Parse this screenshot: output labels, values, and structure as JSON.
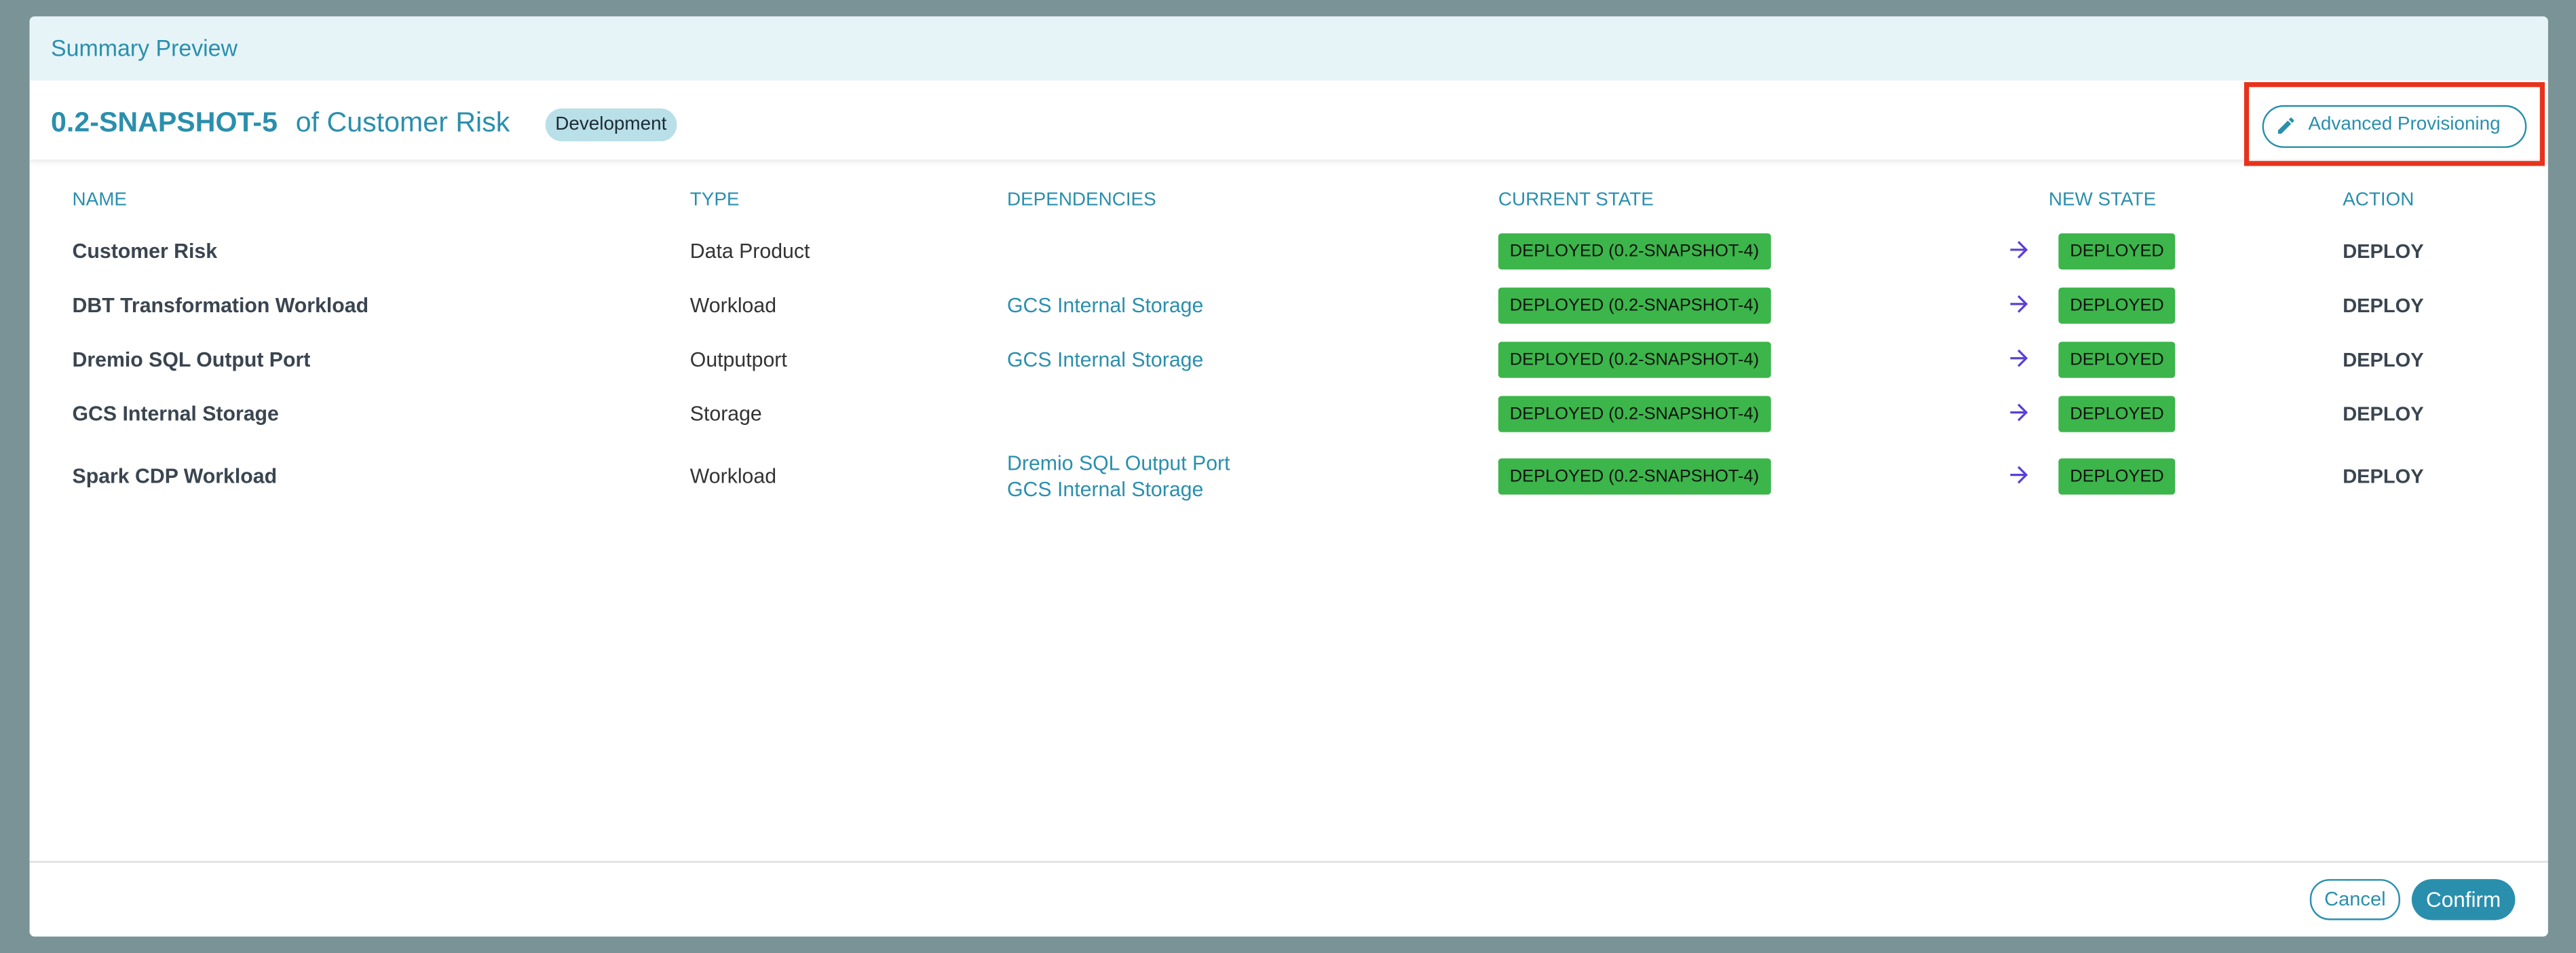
{
  "header": {
    "title": "Summary Preview"
  },
  "title": {
    "version": "0.2-SNAPSHOT-5",
    "text": "of Customer Risk",
    "badge": "Development",
    "button": "Advanced Provisioning"
  },
  "table": {
    "columns": [
      "NAME",
      "TYPE",
      "DEPENDENCIES",
      "CURRENT STATE",
      "NEW STATE",
      "ACTION"
    ],
    "rows": [
      {
        "name": "Customer Risk",
        "type": "Data Product",
        "dependencies": [],
        "current_state": "DEPLOYED (0.2-SNAPSHOT-4)",
        "new_state": "DEPLOYED",
        "action": "DEPLOY"
      },
      {
        "name": "DBT Transformation Workload",
        "type": "Workload",
        "dependencies": [
          "GCS Internal Storage"
        ],
        "current_state": "DEPLOYED (0.2-SNAPSHOT-4)",
        "new_state": "DEPLOYED",
        "action": "DEPLOY"
      },
      {
        "name": "Dremio SQL Output Port",
        "type": "Outputport",
        "dependencies": [
          "GCS Internal Storage"
        ],
        "current_state": "DEPLOYED (0.2-SNAPSHOT-4)",
        "new_state": "DEPLOYED",
        "action": "DEPLOY"
      },
      {
        "name": "GCS Internal Storage",
        "type": "Storage",
        "dependencies": [],
        "current_state": "DEPLOYED (0.2-SNAPSHOT-4)",
        "new_state": "DEPLOYED",
        "action": "DEPLOY"
      },
      {
        "name": "Spark CDP Workload",
        "type": "Workload",
        "dependencies": [
          "Dremio SQL Output Port",
          "GCS Internal Storage"
        ],
        "current_state": "DEPLOYED (0.2-SNAPSHOT-4)",
        "new_state": "DEPLOYED",
        "action": "DEPLOY"
      }
    ]
  },
  "footer": {
    "cancel": "Cancel",
    "confirm": "Confirm"
  }
}
